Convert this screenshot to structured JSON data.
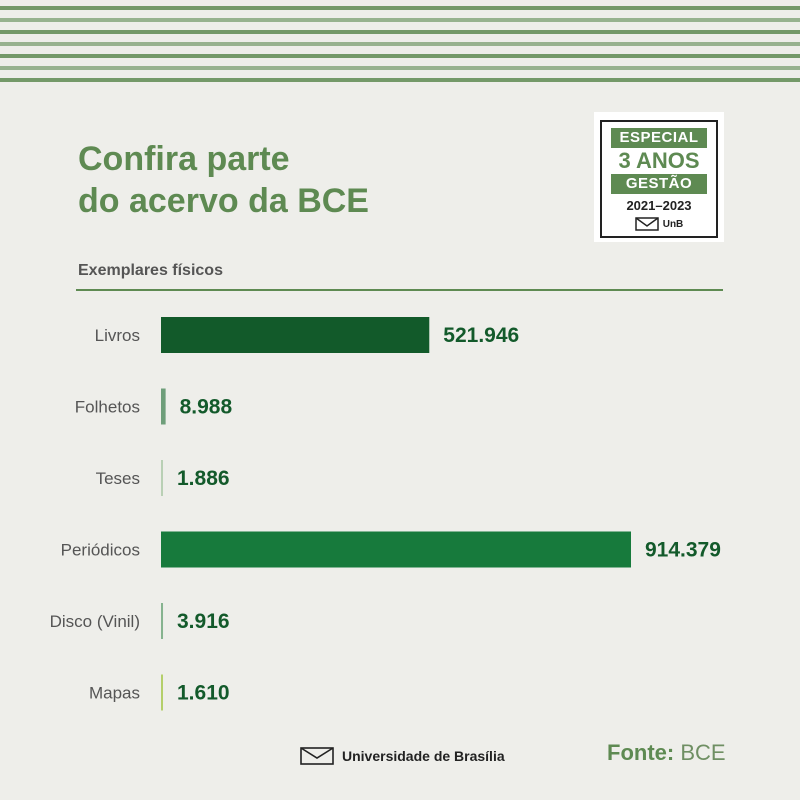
{
  "header": {
    "title_line1": "Confira parte",
    "title_line2": "do acervo da BCE"
  },
  "badge": {
    "line1": "ESPECIAL",
    "line2": "3 ANOS",
    "line3": "GESTÃO",
    "years": "2021–2023",
    "logo_text": "UnB"
  },
  "chart_data": {
    "type": "bar",
    "orientation": "horizontal",
    "subtitle": "Exemplares físicos",
    "categories": [
      "Livros",
      "Folhetos",
      "Teses",
      "Periódicos",
      "Disco (Vinil)",
      "Mapas"
    ],
    "values": [
      521946,
      8988,
      1886,
      914379,
      3916,
      1610
    ],
    "value_labels": [
      "521.946",
      "8.988",
      "1.886",
      "914.379",
      "3.916",
      "1.610"
    ],
    "colors": [
      "#125a2a",
      "#6e9e7a",
      "#b9d0b5",
      "#177a3c",
      "#86b38f",
      "#b4cf6a"
    ]
  },
  "footer": {
    "university": "Universidade de Brasília",
    "source_label": "Fonte:",
    "source_value": "BCE"
  },
  "colors": {
    "accent": "#5e8a52",
    "value_text": "#135a2b",
    "background": "#eeeeea"
  }
}
